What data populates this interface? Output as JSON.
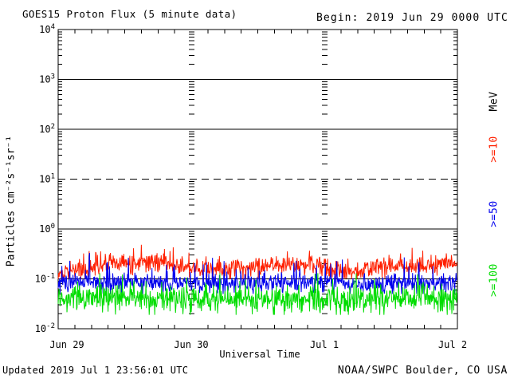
{
  "header": {
    "title": "GOES15 Proton Flux (5 minute data)",
    "begin": "Begin: 2019 Jun 29 0000 UTC"
  },
  "footer": {
    "updated": "Updated 2019 Jul  1 23:56:01 UTC",
    "source": "NOAA/SWPC Boulder, CO USA"
  },
  "legend": [
    {
      "label": "MeV",
      "color": "#000000"
    },
    {
      "label": ">=10",
      "color": "#ff2000"
    },
    {
      "label": ">=50",
      "color": "#0000ee"
    },
    {
      "label": ">=100",
      "color": "#00dd00"
    }
  ],
  "chart_data": {
    "type": "line",
    "title": "GOES15 Proton Flux (5 minute data)",
    "xlabel": "Universal Time",
    "ylabel": "Particles cm⁻²s⁻¹sr⁻¹",
    "y_scale": "log",
    "ylim": [
      0.01,
      10000
    ],
    "y_tick_exponents": [
      4,
      3,
      2,
      1,
      0,
      -1,
      -2
    ],
    "x_ticks": [
      "Jun 29",
      "Jun 30",
      "Jul 1",
      "Jul 2"
    ],
    "x_minor_tick_hours": 3,
    "days": 3,
    "points_per_day": 288,
    "gridlines": {
      "solid": [
        1000,
        100,
        1,
        0.1
      ],
      "dashed": [
        10
      ]
    },
    "grid_dash_column_days": [
      1,
      2
    ],
    "seed": 20190629,
    "series": [
      {
        "name": ">=10",
        "unit": "MeV",
        "color": "#ff2000",
        "anchors_every_hours": 3,
        "anchors": [
          0.125,
          0.14,
          0.165,
          0.19,
          0.21,
          0.225,
          0.215,
          0.19,
          0.165,
          0.15,
          0.155,
          0.17,
          0.18,
          0.185,
          0.19,
          0.195,
          0.175,
          0.145,
          0.14,
          0.165,
          0.18,
          0.175,
          0.185,
          0.205,
          0.22
        ],
        "noise_log_sigma": 0.1,
        "spike_prob": 0.05,
        "spike_log_max": 0.32,
        "dip_prob": 0.0,
        "dip_log_max": 0.0,
        "min": 0.1,
        "max": 0.55
      },
      {
        "name": ">=50",
        "unit": "MeV",
        "color": "#0000ee",
        "anchors_every_hours": 3,
        "anchors": [
          0.08,
          0.083,
          0.086,
          0.089,
          0.09,
          0.088,
          0.086,
          0.084,
          0.081,
          0.079,
          0.08,
          0.083,
          0.085,
          0.084,
          0.082,
          0.083,
          0.086,
          0.081,
          0.078,
          0.08,
          0.082,
          0.081,
          0.083,
          0.086,
          0.086
        ],
        "noise_log_sigma": 0.09,
        "spike_prob": 0.06,
        "spike_log_max": 0.5,
        "dip_prob": 0.05,
        "dip_log_max": 0.15,
        "min": 0.05,
        "max": 0.33
      },
      {
        "name": ">=100",
        "unit": "MeV",
        "color": "#00dd00",
        "anchors_every_hours": 3,
        "anchors": [
          0.04,
          0.041,
          0.043,
          0.045,
          0.046,
          0.045,
          0.044,
          0.042,
          0.04,
          0.039,
          0.041,
          0.042,
          0.043,
          0.042,
          0.041,
          0.042,
          0.043,
          0.04,
          0.039,
          0.04,
          0.041,
          0.04,
          0.041,
          0.043,
          0.043
        ],
        "noise_log_sigma": 0.12,
        "spike_prob": 0.05,
        "spike_log_max": 0.45,
        "dip_prob": 0.1,
        "dip_log_max": 0.25,
        "min": 0.019,
        "max": 0.13
      }
    ]
  }
}
